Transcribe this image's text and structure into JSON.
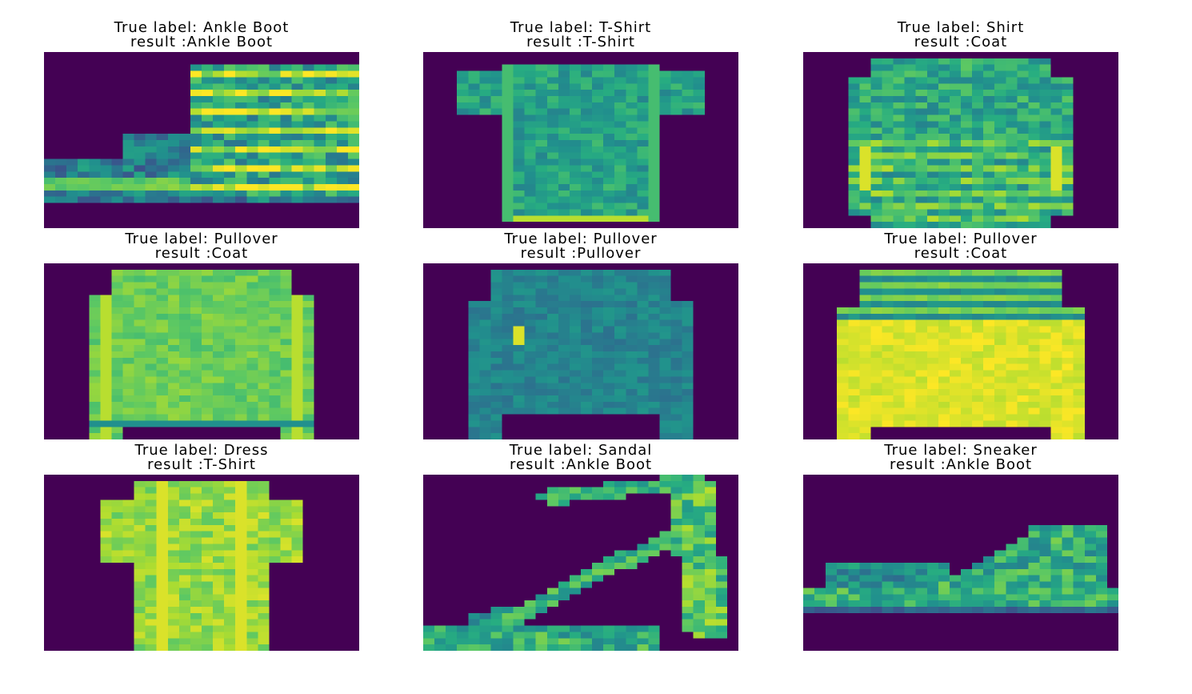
{
  "figure": {
    "colormap": "viridis",
    "background_color": "#440154",
    "panels": [
      {
        "name": "ankle-boot",
        "true_label_line": "True label: Ankle Boot",
        "result_line": "result :Ankle Boot",
        "shape": "boot"
      },
      {
        "name": "t-shirt",
        "true_label_line": "True label: T-Shirt",
        "result_line": "result :T-Shirt",
        "shape": "tshirt"
      },
      {
        "name": "shirt",
        "true_label_line": "True label: Shirt",
        "result_line": "result :Coat",
        "shape": "shirt"
      },
      {
        "name": "pullover-1",
        "true_label_line": "True label: Pullover",
        "result_line": "result :Coat",
        "shape": "pullover_light"
      },
      {
        "name": "pullover-2",
        "true_label_line": "True label: Pullover",
        "result_line": "result :Pullover",
        "shape": "pullover_dark"
      },
      {
        "name": "pullover-3",
        "true_label_line": "True label: Pullover",
        "result_line": "result :Coat",
        "shape": "pullover_striped"
      },
      {
        "name": "dress",
        "true_label_line": "True label: Dress",
        "result_line": "result :T-Shirt",
        "shape": "dress"
      },
      {
        "name": "sandal",
        "true_label_line": "True label: Sandal",
        "result_line": "result :Ankle Boot",
        "shape": "sandal"
      },
      {
        "name": "sneaker",
        "true_label_line": "True label: Sneaker",
        "result_line": "result :Ankle Boot",
        "shape": "sneaker"
      }
    ]
  }
}
